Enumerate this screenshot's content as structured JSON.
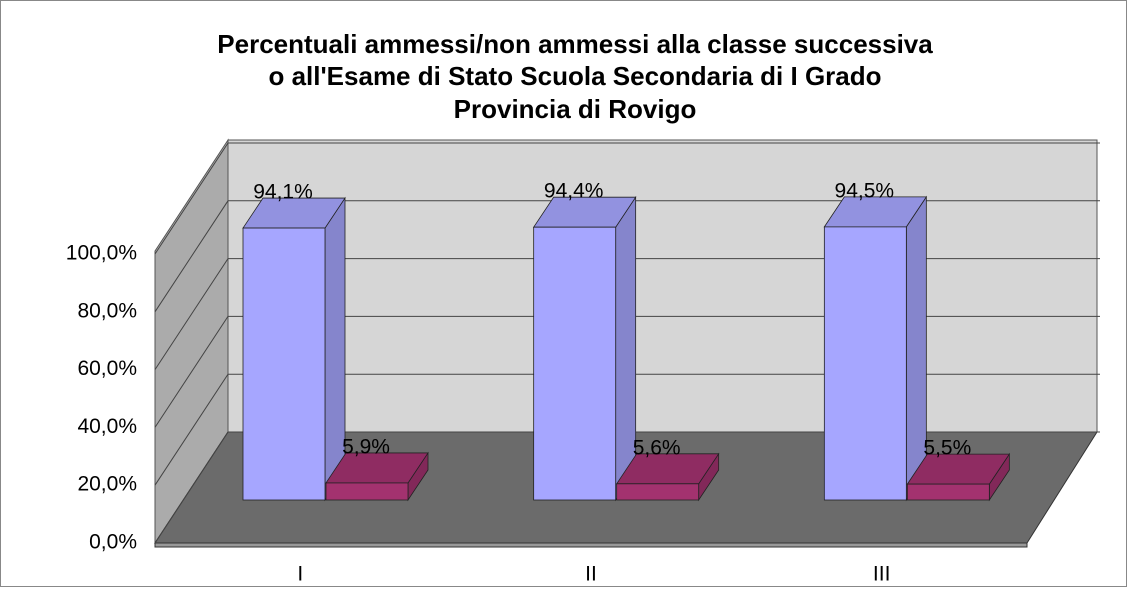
{
  "chart_data": {
    "type": "bar3d",
    "title": [
      "Percentuali ammessi/non ammessi alla classe successiva",
      "o all'Esame di Stato Scuola Secondaria di I Grado",
      "Provincia di Rovigo"
    ],
    "categories": [
      "I",
      "II",
      "III"
    ],
    "series": [
      {
        "color": "#a6a6ff",
        "values": [
          94.1,
          94.4,
          94.5
        ],
        "value_labels": [
          "94,1%",
          "94,4%",
          "94,5%"
        ]
      },
      {
        "color": "#a3326f",
        "values": [
          5.9,
          5.6,
          5.5
        ],
        "value_labels": [
          "5,9%",
          "5,6%",
          "5,5%"
        ]
      }
    ],
    "ylim": [
      0,
      100
    ],
    "yticks": [
      {
        "value": 0,
        "label": "0,0%"
      },
      {
        "value": 20,
        "label": "20,0%"
      },
      {
        "value": 40,
        "label": "40,0%"
      },
      {
        "value": 60,
        "label": "60,0%"
      },
      {
        "value": 80,
        "label": "80,0%"
      },
      {
        "value": 100,
        "label": "100,0%"
      }
    ],
    "grid": true
  }
}
